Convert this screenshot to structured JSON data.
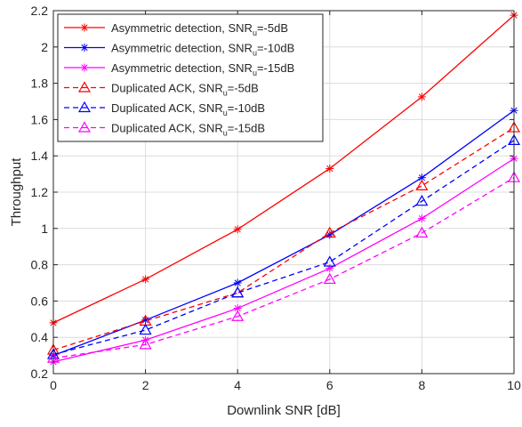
{
  "chart_data": {
    "type": "line",
    "title": "",
    "xlabel": "Downlink SNR [dB]",
    "ylabel": "Throughput",
    "xlim": [
      0,
      10
    ],
    "ylim": [
      0.2,
      2.2
    ],
    "grid": true,
    "legend_position": "top-left",
    "x": [
      0,
      2,
      4,
      6,
      8,
      10
    ],
    "x_ticks": [
      "0",
      "2",
      "4",
      "6",
      "8",
      "10"
    ],
    "y_ticks": [
      "0.2",
      "0.4",
      "0.6",
      "0.8",
      "1",
      "1.2",
      "1.4",
      "1.6",
      "1.8",
      "2",
      "2.2"
    ],
    "series": [
      {
        "name": "Asymmetric detection, SNR_u=-5dB",
        "legend_main": "Asymmetric detection, SNR",
        "legend_sub": "u",
        "legend_tail": "=-5dB",
        "color": "#ff0000",
        "line": "solid",
        "marker": "star",
        "values": [
          0.48,
          0.72,
          0.995,
          1.33,
          1.725,
          2.175
        ]
      },
      {
        "name": "Asymmetric detection, SNR_u=-10dB",
        "legend_main": "Asymmetric detection, SNR",
        "legend_sub": "u",
        "legend_tail": "=-10dB",
        "color": "#0000ff",
        "line": "solid",
        "marker": "star",
        "values": [
          0.3,
          0.495,
          0.7,
          0.965,
          1.28,
          1.65
        ]
      },
      {
        "name": "Asymmetric detection, SNR_u=-15dB",
        "legend_main": "Asymmetric detection, SNR",
        "legend_sub": "u",
        "legend_tail": "=-15dB",
        "color": "#ff00ff",
        "line": "solid",
        "marker": "star",
        "values": [
          0.265,
          0.385,
          0.56,
          0.78,
          1.055,
          1.385
        ]
      },
      {
        "name": "Duplicated ACK, SNR_u=-5dB",
        "legend_main": "Duplicated ACK, SNR",
        "legend_sub": "u",
        "legend_tail": "=-5dB",
        "color": "#ff0000",
        "line": "dashed",
        "marker": "triangle",
        "values": [
          0.33,
          0.49,
          0.645,
          0.975,
          1.235,
          1.555
        ]
      },
      {
        "name": "Duplicated ACK, SNR_u=-10dB",
        "legend_main": "Duplicated ACK, SNR",
        "legend_sub": "u",
        "legend_tail": "=-10dB",
        "color": "#0000ff",
        "line": "dashed",
        "marker": "triangle",
        "values": [
          0.305,
          0.44,
          0.645,
          0.815,
          1.15,
          1.485
        ]
      },
      {
        "name": "Duplicated ACK, SNR_u=-15dB",
        "legend_main": "Duplicated ACK, SNR",
        "legend_sub": "u",
        "legend_tail": "=-15dB",
        "color": "#ff00ff",
        "line": "dashed",
        "marker": "triangle",
        "values": [
          0.285,
          0.36,
          0.515,
          0.72,
          0.975,
          1.28
        ]
      }
    ]
  }
}
